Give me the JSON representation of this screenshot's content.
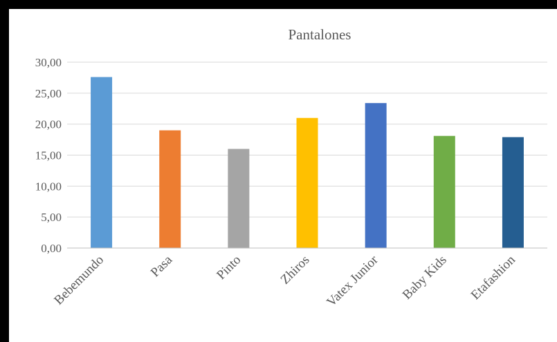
{
  "chart_data": {
    "type": "bar",
    "title": "Pantalones",
    "categories": [
      "Bebemundo",
      "Pasa",
      "Pinto",
      "Zhiros",
      "Vatex Junior",
      "Baby Kids",
      "Etafashion"
    ],
    "values": [
      27.6,
      19.0,
      16.0,
      21.0,
      23.4,
      18.1,
      17.9
    ],
    "colors": [
      "#5b9bd5",
      "#ed7d31",
      "#a5a5a5",
      "#ffc000",
      "#4472c4",
      "#70ad47",
      "#255e91"
    ],
    "yticks": [
      "0,00",
      "5,00",
      "10,00",
      "15,00",
      "20,00",
      "25,00",
      "30,00"
    ],
    "ylim": [
      0,
      30
    ],
    "grid": true,
    "legend": "none"
  }
}
